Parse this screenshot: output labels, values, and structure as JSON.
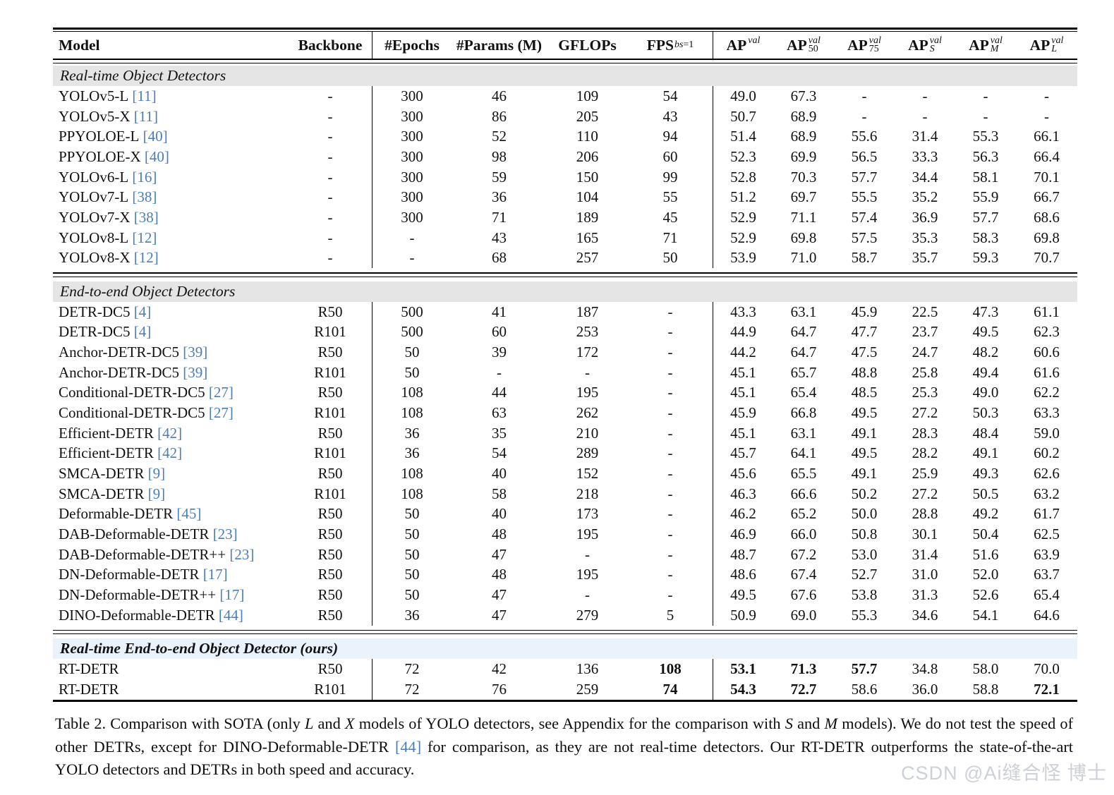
{
  "colors": {
    "citation_blue": "#4a7dbe",
    "band_gray": "#e5e5e5",
    "band_blue": "#eaf2fb",
    "rule_black": "#000000",
    "watermark_gray": "#cdd1d7"
  },
  "table": {
    "columns": [
      {
        "key": "model",
        "label": "Model",
        "align": "left"
      },
      {
        "key": "backbone",
        "label": "Backbone"
      },
      {
        "key": "epochs",
        "label": "#Epochs",
        "divider": true
      },
      {
        "key": "params",
        "label": "#Params (M)"
      },
      {
        "key": "gflops",
        "label": "GFLOPs"
      },
      {
        "key": "fps",
        "label": "FPS",
        "sub_segments": [
          {
            "t": "bs",
            "italic": true
          },
          {
            "t": "=1",
            "italic": false
          }
        ]
      },
      {
        "key": "ap",
        "label": "AP",
        "sup": "val",
        "sub": "",
        "divider": true
      },
      {
        "key": "ap50",
        "label": "AP",
        "sup": "val",
        "sub": "50"
      },
      {
        "key": "ap75",
        "label": "AP",
        "sup": "val",
        "sub": "75"
      },
      {
        "key": "aps",
        "label": "AP",
        "sup": "val",
        "sub": "S",
        "sub_italic": true
      },
      {
        "key": "apm",
        "label": "AP",
        "sup": "val",
        "sub": "M",
        "sub_italic": true
      },
      {
        "key": "apl",
        "label": "AP",
        "sup": "val",
        "sub": "L",
        "sub_italic": true
      }
    ],
    "sections": [
      {
        "title": "Real-time Object Detectors",
        "band": "gray",
        "rows": [
          {
            "model": "YOLOv5-L",
            "ref": "11",
            "cells": [
              "-",
              "300",
              "46",
              "109",
              "54",
              "49.0",
              "67.3",
              "-",
              "-",
              "-",
              "-"
            ],
            "bold": []
          },
          {
            "model": "YOLOv5-X",
            "ref": "11",
            "cells": [
              "-",
              "300",
              "86",
              "205",
              "43",
              "50.7",
              "68.9",
              "-",
              "-",
              "-",
              "-"
            ],
            "bold": []
          },
          {
            "model": "PPYOLOE-L",
            "ref": "40",
            "cells": [
              "-",
              "300",
              "52",
              "110",
              "94",
              "51.4",
              "68.9",
              "55.6",
              "31.4",
              "55.3",
              "66.1"
            ],
            "bold": []
          },
          {
            "model": "PPYOLOE-X",
            "ref": "40",
            "cells": [
              "-",
              "300",
              "98",
              "206",
              "60",
              "52.3",
              "69.9",
              "56.5",
              "33.3",
              "56.3",
              "66.4"
            ],
            "bold": []
          },
          {
            "model": "YOLOv6-L",
            "ref": "16",
            "cells": [
              "-",
              "300",
              "59",
              "150",
              "99",
              "52.8",
              "70.3",
              "57.7",
              "34.4",
              "58.1",
              "70.1"
            ],
            "bold": []
          },
          {
            "model": "YOLOv7-L",
            "ref": "38",
            "cells": [
              "-",
              "300",
              "36",
              "104",
              "55",
              "51.2",
              "69.7",
              "55.5",
              "35.2",
              "55.9",
              "66.7"
            ],
            "bold": []
          },
          {
            "model": "YOLOv7-X",
            "ref": "38",
            "cells": [
              "-",
              "300",
              "71",
              "189",
              "45",
              "52.9",
              "71.1",
              "57.4",
              "36.9",
              "57.7",
              "68.6"
            ],
            "bold": []
          },
          {
            "model": "YOLOv8-L",
            "ref": "12",
            "cells": [
              "-",
              "-",
              "43",
              "165",
              "71",
              "52.9",
              "69.8",
              "57.5",
              "35.3",
              "58.3",
              "69.8"
            ],
            "bold": []
          },
          {
            "model": "YOLOv8-X",
            "ref": "12",
            "cells": [
              "-",
              "-",
              "68",
              "257",
              "50",
              "53.9",
              "71.0",
              "58.7",
              "35.7",
              "59.3",
              "70.7"
            ],
            "bold": []
          }
        ]
      },
      {
        "title": "End-to-end Object Detectors",
        "band": "gray",
        "rows": [
          {
            "model": "DETR-DC5",
            "ref": "4",
            "cells": [
              "R50",
              "500",
              "41",
              "187",
              "-",
              "43.3",
              "63.1",
              "45.9",
              "22.5",
              "47.3",
              "61.1"
            ],
            "bold": []
          },
          {
            "model": "DETR-DC5",
            "ref": "4",
            "cells": [
              "R101",
              "500",
              "60",
              "253",
              "-",
              "44.9",
              "64.7",
              "47.7",
              "23.7",
              "49.5",
              "62.3"
            ],
            "bold": []
          },
          {
            "model": "Anchor-DETR-DC5",
            "ref": "39",
            "cells": [
              "R50",
              "50",
              "39",
              "172",
              "-",
              "44.2",
              "64.7",
              "47.5",
              "24.7",
              "48.2",
              "60.6"
            ],
            "bold": []
          },
          {
            "model": "Anchor-DETR-DC5",
            "ref": "39",
            "cells": [
              "R101",
              "50",
              "-",
              "-",
              "-",
              "45.1",
              "65.7",
              "48.8",
              "25.8",
              "49.4",
              "61.6"
            ],
            "bold": []
          },
          {
            "model": "Conditional-DETR-DC5",
            "ref": "27",
            "cells": [
              "R50",
              "108",
              "44",
              "195",
              "-",
              "45.1",
              "65.4",
              "48.5",
              "25.3",
              "49.0",
              "62.2"
            ],
            "bold": []
          },
          {
            "model": "Conditional-DETR-DC5",
            "ref": "27",
            "cells": [
              "R101",
              "108",
              "63",
              "262",
              "-",
              "45.9",
              "66.8",
              "49.5",
              "27.2",
              "50.3",
              "63.3"
            ],
            "bold": []
          },
          {
            "model": "Efficient-DETR",
            "ref": "42",
            "cells": [
              "R50",
              "36",
              "35",
              "210",
              "-",
              "45.1",
              "63.1",
              "49.1",
              "28.3",
              "48.4",
              "59.0"
            ],
            "bold": []
          },
          {
            "model": "Efficient-DETR",
            "ref": "42",
            "cells": [
              "R101",
              "36",
              "54",
              "289",
              "-",
              "45.7",
              "64.1",
              "49.5",
              "28.2",
              "49.1",
              "60.2"
            ],
            "bold": []
          },
          {
            "model": "SMCA-DETR",
            "ref": "9",
            "cells": [
              "R50",
              "108",
              "40",
              "152",
              "-",
              "45.6",
              "65.5",
              "49.1",
              "25.9",
              "49.3",
              "62.6"
            ],
            "bold": []
          },
          {
            "model": "SMCA-DETR",
            "ref": "9",
            "cells": [
              "R101",
              "108",
              "58",
              "218",
              "-",
              "46.3",
              "66.6",
              "50.2",
              "27.2",
              "50.5",
              "63.2"
            ],
            "bold": []
          },
          {
            "model": "Deformable-DETR",
            "ref": "45",
            "cells": [
              "R50",
              "50",
              "40",
              "173",
              "-",
              "46.2",
              "65.2",
              "50.0",
              "28.8",
              "49.2",
              "61.7"
            ],
            "bold": []
          },
          {
            "model": "DAB-Deformable-DETR",
            "ref": "23",
            "cells": [
              "R50",
              "50",
              "48",
              "195",
              "-",
              "46.9",
              "66.0",
              "50.8",
              "30.1",
              "50.4",
              "62.5"
            ],
            "bold": []
          },
          {
            "model": "DAB-Deformable-DETR++",
            "ref": "23",
            "cells": [
              "R50",
              "50",
              "47",
              "-",
              "-",
              "48.7",
              "67.2",
              "53.0",
              "31.4",
              "51.6",
              "63.9"
            ],
            "bold": []
          },
          {
            "model": "DN-Deformable-DETR",
            "ref": "17",
            "cells": [
              "R50",
              "50",
              "48",
              "195",
              "-",
              "48.6",
              "67.4",
              "52.7",
              "31.0",
              "52.0",
              "63.7"
            ],
            "bold": []
          },
          {
            "model": "DN-Deformable-DETR++",
            "ref": "17",
            "cells": [
              "R50",
              "50",
              "47",
              "-",
              "-",
              "49.5",
              "67.6",
              "53.8",
              "31.3",
              "52.6",
              "65.4"
            ],
            "bold": []
          },
          {
            "model": "DINO-Deformable-DETR",
            "ref": "44",
            "cells": [
              "R50",
              "36",
              "47",
              "279",
              "5",
              "50.9",
              "69.0",
              "55.3",
              "34.6",
              "54.1",
              "64.6"
            ],
            "bold": []
          }
        ]
      },
      {
        "title": "Real-time End-to-end Object Detector (ours)",
        "band": "blue",
        "rows": [
          {
            "model": "RT-DETR",
            "ref": "",
            "cells": [
              "R50",
              "72",
              "42",
              "136",
              "108",
              "53.1",
              "71.3",
              "57.7",
              "34.8",
              "58.0",
              "70.0"
            ],
            "bold": [
              4,
              5,
              6,
              7
            ]
          },
          {
            "model": "RT-DETR",
            "ref": "",
            "cells": [
              "R101",
              "72",
              "76",
              "259",
              "74",
              "54.3",
              "72.7",
              "58.6",
              "36.0",
              "58.8",
              "72.1"
            ],
            "bold": [
              4,
              5,
              6,
              10
            ]
          }
        ]
      }
    ]
  },
  "caption": {
    "segments": [
      {
        "t": "Table 2. Comparison with SOTA (only "
      },
      {
        "t": "L",
        "style": "math"
      },
      {
        "t": " and "
      },
      {
        "t": "X",
        "style": "math"
      },
      {
        "t": " models of YOLO detectors, see Appendix for the comparison with "
      },
      {
        "t": "S",
        "style": "math"
      },
      {
        "t": " and "
      },
      {
        "t": "M",
        "style": "math"
      },
      {
        "t": " models). We do not test the speed of other DETRs, except for DINO-Deformable-DETR "
      },
      {
        "t": "[44]",
        "style": "cite"
      },
      {
        "t": " for comparison, as they are not real-time detectors. Our RT-DETR outperforms the state-of-the-art YOLO detectors and DETRs in both speed and accuracy."
      }
    ]
  },
  "watermark": {
    "text": "CSDN @Ai缝合怪 博士"
  }
}
